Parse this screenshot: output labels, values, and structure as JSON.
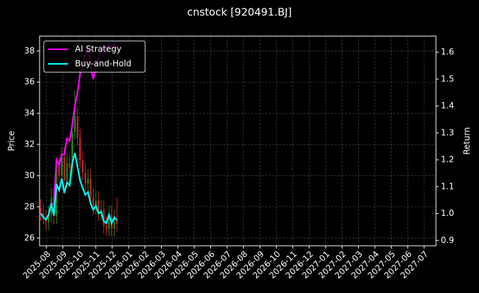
{
  "chart_data": {
    "type": "candlestick",
    "title": "cnstock [920491.BJ]",
    "y_label": "Price",
    "y2_label": "Return",
    "x": [
      -0.35,
      -0.19,
      -0.03,
      0.13,
      0.29,
      0.45,
      0.61,
      0.77,
      0.93,
      1.09,
      1.25,
      1.41,
      1.57,
      1.73,
      1.89,
      2.05,
      2.21,
      2.37,
      2.53,
      2.69,
      2.85,
      3.01,
      3.17,
      3.33,
      3.49,
      3.65,
      3.81,
      3.97,
      4.13,
      4.29
    ],
    "open": [
      27.9,
      27.6,
      27.2,
      27.0,
      27.5,
      28.6,
      27.4,
      30.6,
      30.0,
      31.2,
      29.7,
      30.8,
      30.5,
      32.8,
      33.8,
      32.4,
      31.0,
      30.2,
      29.5,
      29.8,
      28.6,
      28.0,
      28.4,
      27.6,
      27.8,
      26.8,
      26.6,
      27.5,
      26.6,
      27.2
    ],
    "high": [
      28.5,
      28.2,
      27.8,
      28.1,
      29.2,
      29.2,
      31.2,
      31.2,
      31.8,
      31.8,
      31.4,
      31.4,
      33.4,
      35.5,
      34.4,
      33.0,
      31.6,
      30.8,
      30.4,
      30.4,
      29.2,
      29.0,
      29.0,
      28.4,
      28.4,
      27.4,
      28.1,
      28.1,
      27.8,
      28.6
    ],
    "low": [
      27.1,
      26.9,
      26.5,
      26.5,
      27.0,
      26.9,
      26.9,
      29.5,
      29.5,
      29.2,
      29.2,
      30.0,
      30.0,
      32.3,
      31.9,
      30.5,
      29.7,
      29.0,
      29.0,
      28.1,
      27.5,
      27.5,
      27.1,
      27.1,
      26.3,
      26.1,
      26.1,
      26.1,
      26.1,
      26.4
    ],
    "close": [
      27.6,
      27.2,
      27.0,
      27.5,
      28.6,
      27.4,
      30.6,
      30.0,
      31.2,
      29.7,
      30.8,
      30.5,
      32.8,
      33.8,
      32.4,
      31.0,
      30.2,
      29.5,
      29.8,
      28.6,
      28.0,
      28.4,
      27.6,
      27.8,
      26.8,
      26.6,
      27.5,
      26.6,
      27.2,
      26.9
    ],
    "up_color": "#1a8c1a",
    "down_color": "#c8281e",
    "series": [
      {
        "name": "AI Strategy",
        "color": "#ff00ff",
        "axis": "y2",
        "values": [
          1.0,
          0.986,
          0.978,
          0.996,
          1.036,
          1.036,
          1.2,
          1.18,
          1.22,
          1.22,
          1.28,
          1.27,
          1.33,
          1.4,
          1.45,
          1.52,
          1.55,
          1.6,
          1.62,
          1.55,
          1.5,
          1.55,
          1.58,
          1.6,
          1.62,
          1.61,
          1.63,
          1.62,
          1.63,
          1.62
        ]
      },
      {
        "name": "Buy-and-Hold",
        "color": "#00ffff",
        "axis": "y2",
        "values": [
          1.0,
          0.986,
          0.978,
          0.996,
          1.036,
          0.993,
          1.109,
          1.087,
          1.13,
          1.076,
          1.116,
          1.105,
          1.188,
          1.225,
          1.174,
          1.123,
          1.094,
          1.069,
          1.08,
          1.036,
          1.014,
          1.029,
          1.0,
          1.007,
          0.971,
          0.964,
          0.996,
          0.964,
          0.986,
          0.975
        ]
      }
    ],
    "xlim": [
      -0.42,
      23.72
    ],
    "xticks": [
      {
        "value": 0,
        "label": "2025-08"
      },
      {
        "value": 1,
        "label": "2025-09"
      },
      {
        "value": 2,
        "label": "2025-10"
      },
      {
        "value": 3,
        "label": "2025-11"
      },
      {
        "value": 4,
        "label": "2025-12"
      },
      {
        "value": 5,
        "label": "2026-01"
      },
      {
        "value": 6,
        "label": "2026-02"
      },
      {
        "value": 7,
        "label": "2026-03"
      },
      {
        "value": 8,
        "label": "2026-04"
      },
      {
        "value": 9,
        "label": "2026-05"
      },
      {
        "value": 10,
        "label": "2026-06"
      },
      {
        "value": 11,
        "label": "2026-07"
      },
      {
        "value": 12,
        "label": "2026-08"
      },
      {
        "value": 13,
        "label": "2026-09"
      },
      {
        "value": 14,
        "label": "2026-10"
      },
      {
        "value": 15,
        "label": "2026-11"
      },
      {
        "value": 16,
        "label": "2026-12"
      },
      {
        "value": 17,
        "label": "2027-01"
      },
      {
        "value": 18,
        "label": "2027-02"
      },
      {
        "value": 19,
        "label": "2027-03"
      },
      {
        "value": 20,
        "label": "2027-04"
      },
      {
        "value": 21,
        "label": "2027-05"
      },
      {
        "value": 22,
        "label": "2027-06"
      },
      {
        "value": 23,
        "label": "2027-07"
      }
    ],
    "ylim": [
      25.5,
      38.95
    ],
    "yticks": [
      26,
      28,
      30,
      32,
      34,
      36,
      38
    ],
    "y2lim": [
      0.88,
      1.66
    ],
    "y2ticks": [
      0.9,
      {
        "value": 1.0,
        "label": "1.0"
      },
      1.1,
      1.2,
      1.3,
      1.4,
      1.5,
      1.6
    ],
    "grid": true,
    "legend": "upper left"
  }
}
